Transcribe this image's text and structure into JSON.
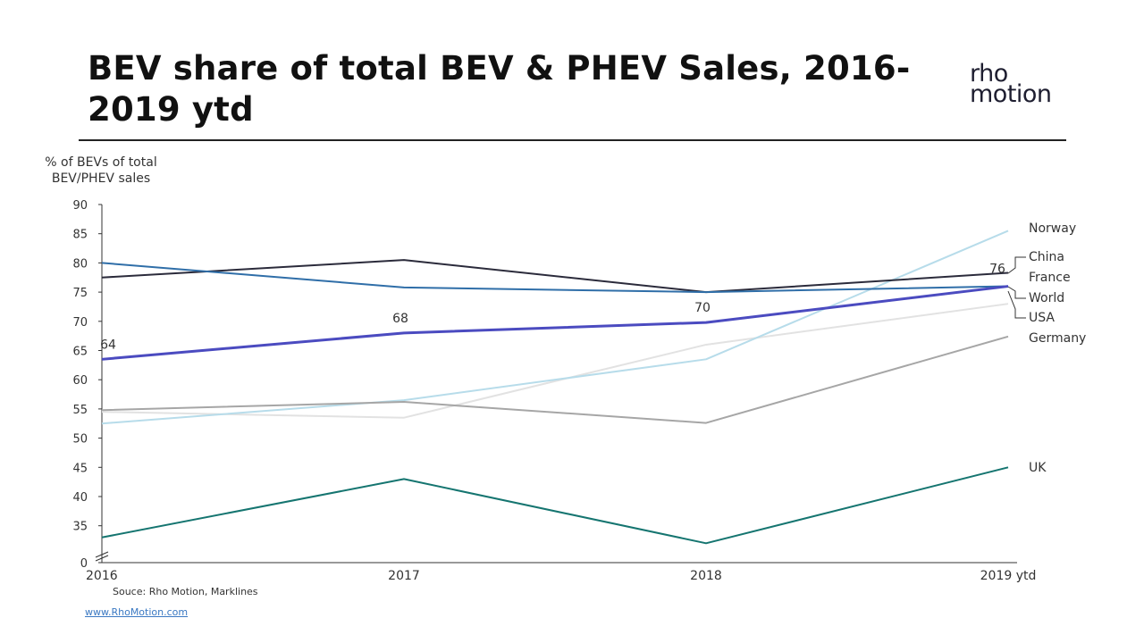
{
  "header": {
    "title": "BEV share of total BEV & PHEV Sales, 2016-2019 ytd",
    "logo_line1": "rho",
    "logo_line2": "motion"
  },
  "footer": {
    "source": "Souce: Rho Motion, Marklines",
    "link": "www.RhoMotion.com"
  },
  "chart_data": {
    "type": "line",
    "ylabel": "% of BEVs of total BEV/PHEV sales",
    "categories": [
      "2016",
      "2017",
      "2018",
      "2019 ytd"
    ],
    "yticks": [
      "90",
      "85",
      "80",
      "75",
      "70",
      "65",
      "60",
      "55",
      "50",
      "45",
      "40",
      "35",
      "0"
    ],
    "ylim": [
      30,
      90
    ],
    "axis_break": true,
    "grid": false,
    "legend": "right end-of-line labels",
    "series": [
      {
        "name": "Norway",
        "values": [
          52.5,
          56.5,
          63.5,
          85.5
        ],
        "color": "#b7dcea"
      },
      {
        "name": "China",
        "values": [
          77.5,
          80.5,
          75,
          78.3
        ],
        "color": "#2b2b3b"
      },
      {
        "name": "France",
        "values": [
          80,
          75.8,
          75,
          76
        ],
        "color": "#2f6ea8"
      },
      {
        "name": "World",
        "values": [
          63.5,
          68,
          69.8,
          76
        ],
        "color": "#4b4bc0",
        "data_labels": [
          "64",
          "68",
          "70",
          "76"
        ]
      },
      {
        "name": "USA",
        "values": [
          54.5,
          53.5,
          66,
          73
        ],
        "color": "#e2e2e2"
      },
      {
        "name": "Germany",
        "values": [
          54.8,
          56.2,
          52.6,
          67.4
        ],
        "color": "#a6a6a6"
      },
      {
        "name": "UK",
        "values": [
          33,
          43,
          32,
          45
        ],
        "color": "#157570"
      }
    ]
  }
}
